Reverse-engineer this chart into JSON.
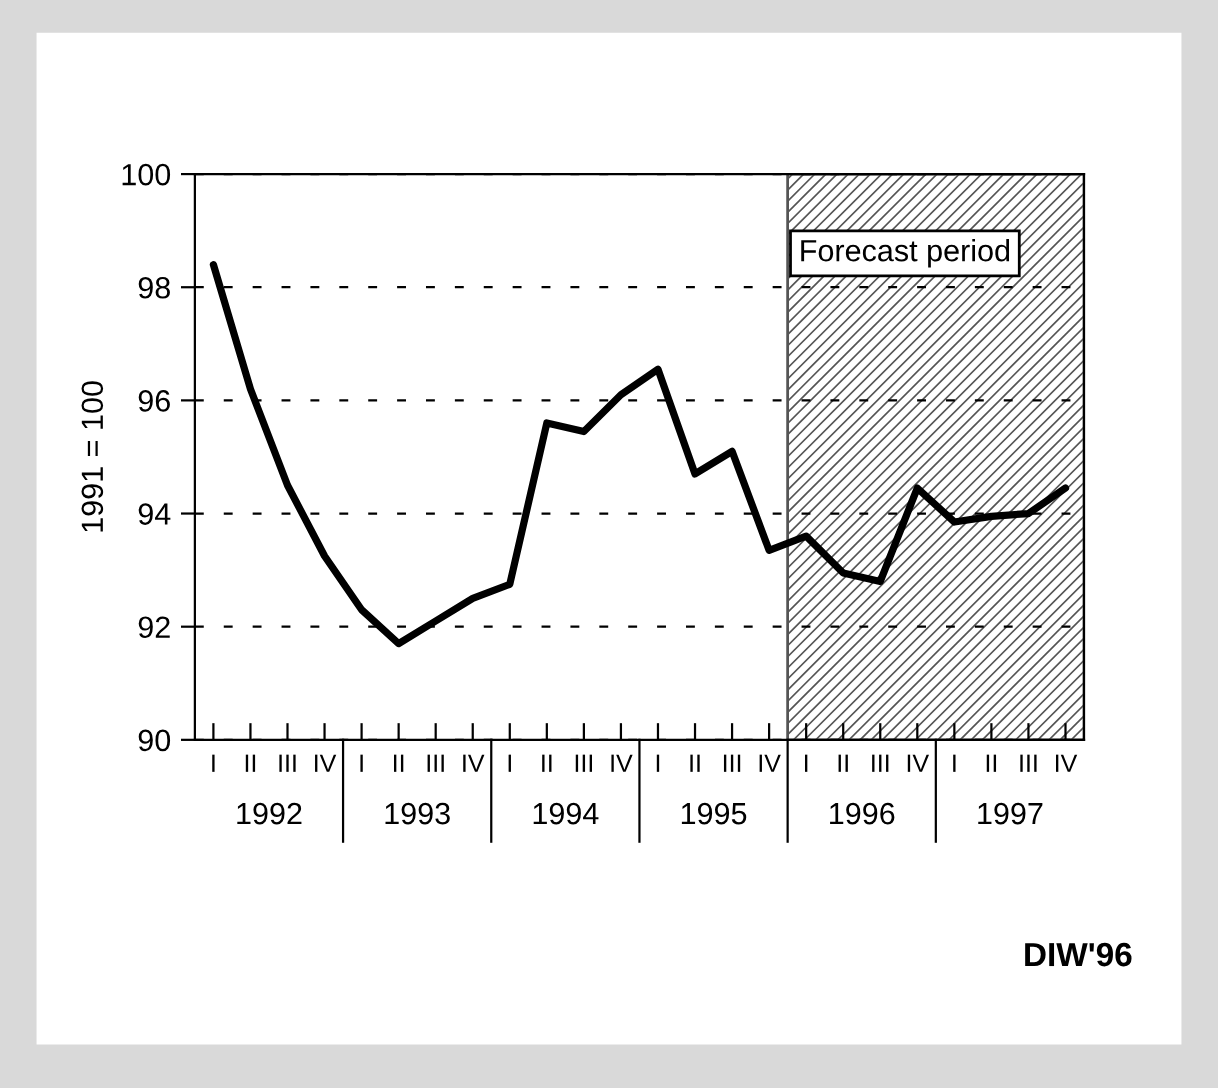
{
  "chart_data": {
    "type": "line",
    "ylabel": "1991 = 100",
    "categories": [
      "I",
      "II",
      "III",
      "IV",
      "I",
      "II",
      "III",
      "IV",
      "I",
      "II",
      "III",
      "IV",
      "I",
      "II",
      "III",
      "IV",
      "I",
      "II",
      "III",
      "IV",
      "I",
      "II",
      "III",
      "IV"
    ],
    "series": [
      {
        "color": "#000000",
        "values": [
          98.4,
          96.2,
          94.5,
          93.25,
          92.3,
          91.7,
          92.1,
          92.5,
          92.75,
          95.6,
          95.45,
          96.1,
          96.55,
          94.7,
          95.1,
          93.35,
          93.6,
          92.95,
          92.8,
          94.45,
          93.85,
          93.95,
          94.0,
          94.45
        ]
      }
    ],
    "ylim": [
      90,
      100
    ],
    "yticks": [
      90,
      92,
      94,
      96,
      98,
      100
    ],
    "grid": "y",
    "line_style": "solid",
    "marker": "none",
    "annotations": [
      "1992",
      "1993",
      "1994",
      "1995",
      "1996",
      "1997",
      "Forecast period",
      "DIW'96"
    ]
  }
}
